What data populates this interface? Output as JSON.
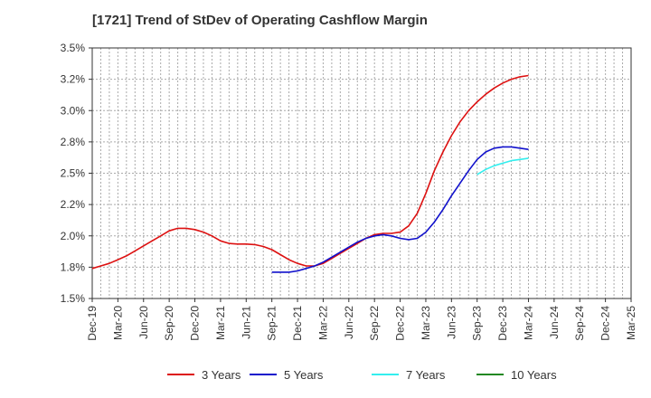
{
  "chart_data": {
    "type": "line",
    "title": "[1721]  Trend of StDev of Operating Cashflow Margin",
    "xlabel": "",
    "ylabel": "",
    "y_tick_labels": [
      "1.5%",
      "1.8%",
      "2.0%",
      "2.2%",
      "2.5%",
      "2.8%",
      "3.0%",
      "3.2%",
      "3.5%"
    ],
    "ylim": [
      1.5,
      3.5
    ],
    "x_tick_labels": [
      "Dec-19",
      "Mar-20",
      "Jun-20",
      "Sep-20",
      "Dec-20",
      "Mar-21",
      "Jun-21",
      "Sep-21",
      "Dec-21",
      "Mar-22",
      "Jun-22",
      "Sep-22",
      "Dec-22",
      "Mar-23",
      "Jun-23",
      "Sep-23",
      "Dec-23",
      "Mar-24",
      "Jun-24",
      "Sep-24",
      "Dec-24",
      "Mar-25"
    ],
    "grid": true,
    "legend_position": "bottom",
    "series": [
      {
        "name": "3 Years",
        "color": "#dd1111",
        "x": [
          "Dec-19",
          "Jan-20",
          "Feb-20",
          "Mar-20",
          "Apr-20",
          "May-20",
          "Jun-20",
          "Jul-20",
          "Aug-20",
          "Sep-20",
          "Oct-20",
          "Nov-20",
          "Dec-20",
          "Jan-21",
          "Feb-21",
          "Mar-21",
          "Apr-21",
          "May-21",
          "Jun-21",
          "Jul-21",
          "Aug-21",
          "Sep-21",
          "Oct-21",
          "Nov-21",
          "Dec-21",
          "Jan-22",
          "Feb-22",
          "Mar-22",
          "Apr-22",
          "May-22",
          "Jun-22",
          "Jul-22",
          "Aug-22",
          "Sep-22",
          "Oct-22",
          "Nov-22",
          "Dec-22",
          "Jan-23",
          "Feb-23",
          "Mar-23",
          "Apr-23",
          "May-23",
          "Jun-23",
          "Jul-23",
          "Aug-23",
          "Sep-23",
          "Oct-23",
          "Nov-23",
          "Dec-23",
          "Jan-24",
          "Feb-24",
          "Mar-24"
        ],
        "values": [
          1.74,
          1.76,
          1.78,
          1.81,
          1.84,
          1.88,
          1.92,
          1.96,
          2.0,
          2.04,
          2.06,
          2.06,
          2.05,
          2.03,
          2.0,
          1.96,
          1.94,
          1.935,
          1.935,
          1.93,
          1.915,
          1.89,
          1.85,
          1.81,
          1.78,
          1.76,
          1.76,
          1.78,
          1.82,
          1.86,
          1.9,
          1.94,
          1.98,
          2.01,
          2.02,
          2.02,
          2.03,
          2.08,
          2.18,
          2.34,
          2.52,
          2.67,
          2.8,
          2.91,
          3.0,
          3.07,
          3.13,
          3.18,
          3.22,
          3.25,
          3.27,
          3.28
        ]
      },
      {
        "name": "5 Years",
        "color": "#1111cc",
        "x": [
          "Sep-21",
          "Oct-21",
          "Nov-21",
          "Dec-21",
          "Jan-22",
          "Feb-22",
          "Mar-22",
          "Apr-22",
          "May-22",
          "Jun-22",
          "Jul-22",
          "Aug-22",
          "Sep-22",
          "Oct-22",
          "Nov-22",
          "Dec-22",
          "Jan-23",
          "Feb-23",
          "Mar-23",
          "Apr-23",
          "May-23",
          "Jun-23",
          "Jul-23",
          "Aug-23",
          "Sep-23",
          "Oct-23",
          "Nov-23",
          "Dec-23",
          "Jan-24",
          "Feb-24",
          "Mar-24"
        ],
        "values": [
          1.71,
          1.71,
          1.71,
          1.72,
          1.74,
          1.76,
          1.79,
          1.83,
          1.87,
          1.91,
          1.95,
          1.98,
          2.0,
          2.01,
          2.0,
          1.98,
          1.97,
          1.98,
          2.03,
          2.11,
          2.21,
          2.32,
          2.42,
          2.52,
          2.61,
          2.67,
          2.7,
          2.71,
          2.71,
          2.7,
          2.69
        ]
      },
      {
        "name": "7 Years",
        "color": "#33eeee",
        "x": [
          "Sep-23",
          "Oct-23",
          "Nov-23",
          "Dec-23",
          "Jan-24",
          "Feb-24",
          "Mar-24"
        ],
        "values": [
          2.49,
          2.53,
          2.56,
          2.58,
          2.6,
          2.61,
          2.62
        ]
      },
      {
        "name": "10 Years",
        "color": "#228822",
        "x": [],
        "values": []
      }
    ]
  }
}
